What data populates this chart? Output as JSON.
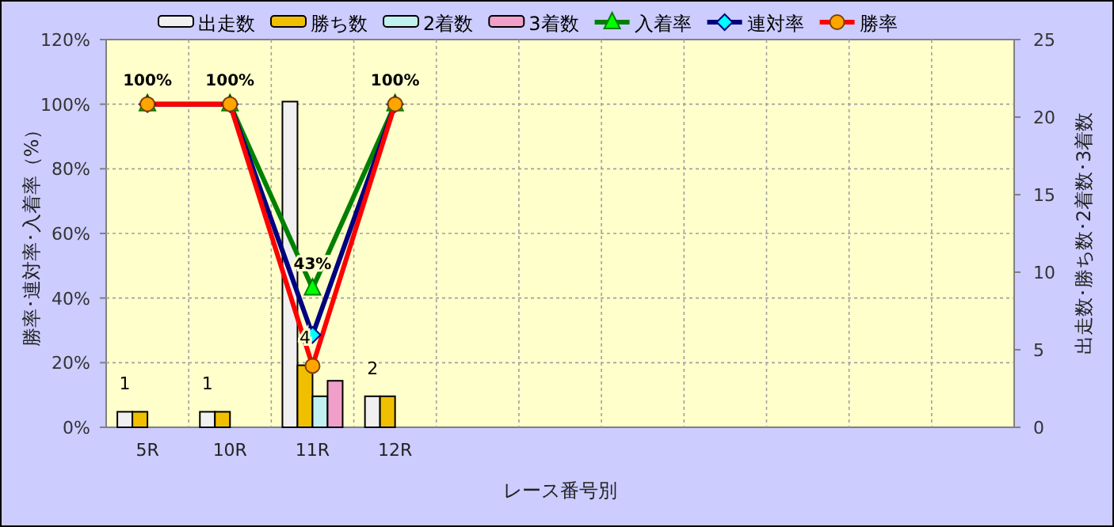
{
  "chart_data": {
    "type": "bar",
    "xlabel": "レース番号別",
    "ylabel": "勝率･連対率･入着率（%）",
    "y2label": "出走数･勝ち数･2着数･3着数",
    "categories": [
      "5R",
      "10R",
      "11R",
      "12R",
      null,
      null,
      null,
      null,
      null,
      null,
      null
    ],
    "series": [
      {
        "name": "出走数",
        "axis": "y2",
        "color": "#f0f0f0",
        "values": [
          1,
          1,
          21,
          2,
          null,
          null,
          null,
          null,
          null,
          null,
          null
        ],
        "value_labels": [
          "1",
          "1",
          null,
          "2",
          null,
          null,
          null,
          null,
          null,
          null,
          null
        ]
      },
      {
        "name": "勝ち数",
        "axis": "y2",
        "color": "#f0c000",
        "values": [
          1,
          1,
          4,
          2,
          null,
          null,
          null,
          null,
          null,
          null,
          null
        ],
        "value_labels": [
          null,
          null,
          "4",
          null,
          null,
          null,
          null,
          null,
          null,
          null,
          null
        ]
      },
      {
        "name": "2着数",
        "axis": "y2",
        "color": "#c0f0f0",
        "values": [
          0,
          0,
          2,
          0,
          null,
          null,
          null,
          null,
          null,
          null,
          null
        ]
      },
      {
        "name": "3着数",
        "axis": "y2",
        "color": "#f0a0c8",
        "values": [
          0,
          0,
          3,
          0,
          null,
          null,
          null,
          null,
          null,
          null,
          null
        ]
      },
      {
        "name": "入着率",
        "type": "line",
        "color": "#008000",
        "marker": "triangle",
        "values": [
          100,
          100,
          43,
          100,
          null,
          null,
          null,
          null,
          null,
          null,
          null
        ],
        "value_labels": [
          "100%",
          "100%",
          "43%",
          "100%",
          null,
          null,
          null,
          null,
          null,
          null,
          null
        ]
      },
      {
        "name": "連対率",
        "type": "line",
        "color": "#000080",
        "marker": "diamond",
        "values": [
          100,
          100,
          28.6,
          100,
          null,
          null,
          null,
          null,
          null,
          null,
          null
        ]
      },
      {
        "name": "勝率",
        "type": "line",
        "color": "#ff0000",
        "marker": "circle",
        "values": [
          100,
          100,
          19,
          100,
          null,
          null,
          null,
          null,
          null,
          null,
          null
        ]
      }
    ],
    "ylim": [
      0,
      120
    ],
    "yticks": [
      {
        "value": 0,
        "label": "0%"
      },
      {
        "value": 20,
        "label": "20%"
      },
      {
        "value": 40,
        "label": "40%"
      },
      {
        "value": 60,
        "label": "60%"
      },
      {
        "value": 80,
        "label": "80%"
      },
      {
        "value": 100,
        "label": "100%"
      },
      {
        "value": 120,
        "label": "120%"
      }
    ],
    "y2lim": [
      0,
      25
    ],
    "y2ticks": [
      0,
      5,
      10,
      15,
      20,
      25
    ],
    "grid": true,
    "legend": "top"
  }
}
